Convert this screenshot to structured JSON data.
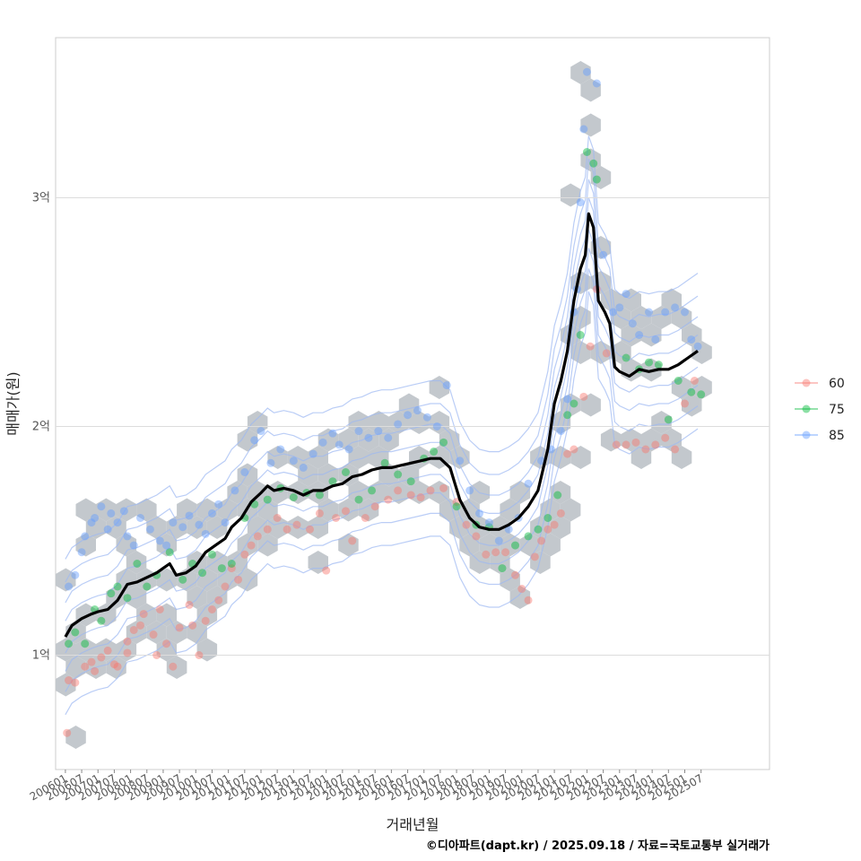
{
  "chart_data": {
    "type": "scatter",
    "title": "",
    "xlabel": "거래년월",
    "ylabel": "매매가(원)",
    "caption": "©디아파트(dapt.kr) / 2025.09.18 / 자료=국토교통부 실거래가",
    "ylim": [
      0.5,
      3.7
    ],
    "yticks": [
      {
        "value": 1,
        "label": "1억"
      },
      {
        "value": 2,
        "label": "2억"
      },
      {
        "value": 3,
        "label": "3억"
      }
    ],
    "xlim": [
      2005.7,
      2027.6
    ],
    "x_tick_labels": [
      "200601",
      "200607",
      "200701",
      "200707",
      "200801",
      "200807",
      "200901",
      "200907",
      "201001",
      "201007",
      "201101",
      "201107",
      "201201",
      "201207",
      "201301",
      "201307",
      "201401",
      "201407",
      "201501",
      "201507",
      "201601",
      "201607",
      "201701",
      "201707",
      "201801",
      "201807",
      "201901",
      "201907",
      "202001",
      "202007",
      "202101",
      "202107",
      "202201",
      "202207",
      "202301",
      "202307",
      "202401",
      "202407",
      "202501",
      "202507"
    ],
    "legend": {
      "position": "right",
      "entries": [
        {
          "name": "60",
          "color": "#F8766D"
        },
        {
          "name": "75",
          "color": "#00BA38"
        },
        {
          "name": "85",
          "color": "#619CFF"
        }
      ]
    },
    "series": [
      {
        "name": "60",
        "color": "#F8766D",
        "points": [
          [
            2006.05,
            0.66
          ],
          [
            2006.1,
            0.89
          ],
          [
            2006.3,
            0.88
          ],
          [
            2006.6,
            0.95
          ],
          [
            2006.8,
            0.97
          ],
          [
            2006.9,
            0.93
          ],
          [
            2007.1,
            0.99
          ],
          [
            2007.3,
            1.02
          ],
          [
            2007.5,
            0.96
          ],
          [
            2007.6,
            0.95
          ],
          [
            2007.9,
            1.01
          ],
          [
            2007.9,
            1.06
          ],
          [
            2008.1,
            1.11
          ],
          [
            2008.3,
            1.13
          ],
          [
            2008.4,
            1.18
          ],
          [
            2008.7,
            1.09
          ],
          [
            2008.8,
            1.0
          ],
          [
            2008.9,
            1.2
          ],
          [
            2009.1,
            1.05
          ],
          [
            2009.3,
            0.95
          ],
          [
            2009.5,
            1.12
          ],
          [
            2009.8,
            1.22
          ],
          [
            2009.9,
            1.13
          ],
          [
            2010.1,
            1.0
          ],
          [
            2010.3,
            1.15
          ],
          [
            2010.5,
            1.2
          ],
          [
            2010.7,
            1.24
          ],
          [
            2010.9,
            1.3
          ],
          [
            2011.1,
            1.38
          ],
          [
            2011.3,
            1.33
          ],
          [
            2011.5,
            1.44
          ],
          [
            2011.7,
            1.48
          ],
          [
            2011.9,
            1.52
          ],
          [
            2012.2,
            1.55
          ],
          [
            2012.5,
            1.6
          ],
          [
            2012.8,
            1.55
          ],
          [
            2013.1,
            1.57
          ],
          [
            2013.5,
            1.55
          ],
          [
            2013.8,
            1.62
          ],
          [
            2014.0,
            1.37
          ],
          [
            2014.3,
            1.6
          ],
          [
            2014.6,
            1.63
          ],
          [
            2014.8,
            1.5
          ],
          [
            2015.2,
            1.6
          ],
          [
            2015.5,
            1.65
          ],
          [
            2015.9,
            1.68
          ],
          [
            2016.2,
            1.72
          ],
          [
            2016.6,
            1.7
          ],
          [
            2016.9,
            1.69
          ],
          [
            2017.2,
            1.72
          ],
          [
            2017.6,
            1.73
          ],
          [
            2018.0,
            1.67
          ],
          [
            2018.3,
            1.57
          ],
          [
            2018.6,
            1.52
          ],
          [
            2018.9,
            1.44
          ],
          [
            2019.2,
            1.45
          ],
          [
            2019.5,
            1.45
          ],
          [
            2019.8,
            1.35
          ],
          [
            2020.0,
            1.29
          ],
          [
            2020.2,
            1.24
          ],
          [
            2020.4,
            1.43
          ],
          [
            2020.6,
            1.5
          ],
          [
            2020.8,
            1.55
          ],
          [
            2021.0,
            1.57
          ],
          [
            2021.2,
            1.62
          ],
          [
            2021.4,
            1.88
          ],
          [
            2021.6,
            1.9
          ],
          [
            2021.9,
            2.13
          ],
          [
            2022.1,
            2.35
          ],
          [
            2022.3,
            2.6
          ],
          [
            2022.6,
            2.32
          ],
          [
            2022.9,
            1.92
          ],
          [
            2023.2,
            1.92
          ],
          [
            2023.5,
            1.93
          ],
          [
            2023.8,
            1.9
          ],
          [
            2024.1,
            1.92
          ],
          [
            2024.4,
            1.95
          ],
          [
            2024.7,
            1.9
          ],
          [
            2025.0,
            2.1
          ],
          [
            2025.3,
            2.2
          ]
        ]
      },
      {
        "name": "75",
        "color": "#00BA38",
        "points": [
          [
            2006.1,
            1.05
          ],
          [
            2006.3,
            1.1
          ],
          [
            2006.6,
            1.05
          ],
          [
            2006.9,
            1.2
          ],
          [
            2007.1,
            1.15
          ],
          [
            2007.4,
            1.27
          ],
          [
            2007.6,
            1.3
          ],
          [
            2007.9,
            1.25
          ],
          [
            2008.2,
            1.4
          ],
          [
            2008.5,
            1.3
          ],
          [
            2008.8,
            1.35
          ],
          [
            2009.2,
            1.45
          ],
          [
            2009.6,
            1.33
          ],
          [
            2009.9,
            1.4
          ],
          [
            2010.2,
            1.36
          ],
          [
            2010.5,
            1.44
          ],
          [
            2010.8,
            1.38
          ],
          [
            2011.1,
            1.4
          ],
          [
            2011.5,
            1.6
          ],
          [
            2011.8,
            1.66
          ],
          [
            2012.2,
            1.68
          ],
          [
            2012.6,
            1.73
          ],
          [
            2013.0,
            1.69
          ],
          [
            2013.4,
            1.71
          ],
          [
            2013.8,
            1.7
          ],
          [
            2014.2,
            1.76
          ],
          [
            2014.6,
            1.8
          ],
          [
            2015.0,
            1.68
          ],
          [
            2015.4,
            1.72
          ],
          [
            2015.8,
            1.84
          ],
          [
            2016.2,
            1.79
          ],
          [
            2016.6,
            1.76
          ],
          [
            2017.0,
            1.86
          ],
          [
            2017.3,
            1.89
          ],
          [
            2017.6,
            1.93
          ],
          [
            2018.0,
            1.65
          ],
          [
            2018.6,
            1.57
          ],
          [
            2019.0,
            1.56
          ],
          [
            2019.4,
            1.38
          ],
          [
            2019.8,
            1.48
          ],
          [
            2020.2,
            1.52
          ],
          [
            2020.5,
            1.55
          ],
          [
            2020.8,
            1.6
          ],
          [
            2021.1,
            1.7
          ],
          [
            2021.4,
            2.05
          ],
          [
            2021.6,
            2.1
          ],
          [
            2021.8,
            2.4
          ],
          [
            2022.0,
            3.2
          ],
          [
            2022.2,
            3.15
          ],
          [
            2022.3,
            3.08
          ],
          [
            2023.2,
            2.3
          ],
          [
            2023.6,
            2.25
          ],
          [
            2023.9,
            2.28
          ],
          [
            2024.2,
            2.27
          ],
          [
            2024.5,
            2.03
          ],
          [
            2024.8,
            2.2
          ],
          [
            2025.2,
            2.15
          ],
          [
            2025.5,
            2.14
          ]
        ]
      },
      {
        "name": "85",
        "color": "#619CFF",
        "points": [
          [
            2006.1,
            1.3
          ],
          [
            2006.3,
            1.35
          ],
          [
            2006.5,
            1.45
          ],
          [
            2006.6,
            1.52
          ],
          [
            2006.8,
            1.58
          ],
          [
            2006.9,
            1.6
          ],
          [
            2007.1,
            1.65
          ],
          [
            2007.3,
            1.55
          ],
          [
            2007.4,
            1.62
          ],
          [
            2007.6,
            1.58
          ],
          [
            2007.8,
            1.63
          ],
          [
            2007.9,
            1.52
          ],
          [
            2008.1,
            1.48
          ],
          [
            2008.3,
            1.6
          ],
          [
            2008.6,
            1.55
          ],
          [
            2008.9,
            1.5
          ],
          [
            2009.1,
            1.48
          ],
          [
            2009.3,
            1.58
          ],
          [
            2009.6,
            1.56
          ],
          [
            2009.8,
            1.61
          ],
          [
            2010.1,
            1.57
          ],
          [
            2010.3,
            1.53
          ],
          [
            2010.5,
            1.62
          ],
          [
            2010.7,
            1.66
          ],
          [
            2010.9,
            1.58
          ],
          [
            2011.2,
            1.72
          ],
          [
            2011.5,
            1.8
          ],
          [
            2011.8,
            1.94
          ],
          [
            2012.0,
            1.98
          ],
          [
            2012.3,
            1.84
          ],
          [
            2012.6,
            1.9
          ],
          [
            2013.0,
            1.85
          ],
          [
            2013.3,
            1.82
          ],
          [
            2013.6,
            1.88
          ],
          [
            2013.9,
            1.93
          ],
          [
            2014.2,
            1.97
          ],
          [
            2014.4,
            1.92
          ],
          [
            2014.7,
            1.9
          ],
          [
            2015.0,
            1.98
          ],
          [
            2015.3,
            1.95
          ],
          [
            2015.6,
            1.98
          ],
          [
            2015.9,
            1.95
          ],
          [
            2016.2,
            2.01
          ],
          [
            2016.5,
            2.05
          ],
          [
            2016.8,
            2.07
          ],
          [
            2017.1,
            2.04
          ],
          [
            2017.4,
            2.0
          ],
          [
            2017.7,
            2.18
          ],
          [
            2018.1,
            1.85
          ],
          [
            2018.4,
            1.72
          ],
          [
            2018.7,
            1.62
          ],
          [
            2019.0,
            1.58
          ],
          [
            2019.3,
            1.5
          ],
          [
            2019.6,
            1.55
          ],
          [
            2019.9,
            1.6
          ],
          [
            2020.2,
            1.75
          ],
          [
            2020.6,
            1.85
          ],
          [
            2020.9,
            1.9
          ],
          [
            2021.2,
            1.98
          ],
          [
            2021.4,
            2.12
          ],
          [
            2021.6,
            2.5
          ],
          [
            2021.7,
            2.6
          ],
          [
            2021.8,
            2.98
          ],
          [
            2021.9,
            3.3
          ],
          [
            2022.0,
            3.55
          ],
          [
            2022.3,
            3.5
          ],
          [
            2022.5,
            2.75
          ],
          [
            2022.8,
            2.5
          ],
          [
            2023.0,
            2.52
          ],
          [
            2023.2,
            2.58
          ],
          [
            2023.4,
            2.45
          ],
          [
            2023.6,
            2.4
          ],
          [
            2023.9,
            2.5
          ],
          [
            2024.1,
            2.38
          ],
          [
            2024.4,
            2.5
          ],
          [
            2024.7,
            2.52
          ],
          [
            2025.0,
            2.5
          ],
          [
            2025.2,
            2.38
          ],
          [
            2025.4,
            2.35
          ]
        ]
      },
      {
        "name": "median",
        "color": "#000000",
        "line": [
          [
            2006.0,
            1.08
          ],
          [
            2006.2,
            1.13
          ],
          [
            2006.5,
            1.16
          ],
          [
            2006.8,
            1.18
          ],
          [
            2007.0,
            1.19
          ],
          [
            2007.3,
            1.2
          ],
          [
            2007.6,
            1.24
          ],
          [
            2007.9,
            1.31
          ],
          [
            2008.2,
            1.32
          ],
          [
            2008.5,
            1.34
          ],
          [
            2008.8,
            1.36
          ],
          [
            2009.0,
            1.38
          ],
          [
            2009.2,
            1.4
          ],
          [
            2009.4,
            1.35
          ],
          [
            2009.7,
            1.36
          ],
          [
            2010.0,
            1.39
          ],
          [
            2010.3,
            1.45
          ],
          [
            2010.6,
            1.48
          ],
          [
            2010.9,
            1.51
          ],
          [
            2011.1,
            1.56
          ],
          [
            2011.4,
            1.6
          ],
          [
            2011.7,
            1.67
          ],
          [
            2012.0,
            1.71
          ],
          [
            2012.2,
            1.74
          ],
          [
            2012.4,
            1.72
          ],
          [
            2012.7,
            1.73
          ],
          [
            2013.0,
            1.72
          ],
          [
            2013.3,
            1.7
          ],
          [
            2013.6,
            1.72
          ],
          [
            2013.9,
            1.72
          ],
          [
            2014.2,
            1.74
          ],
          [
            2014.5,
            1.75
          ],
          [
            2014.8,
            1.78
          ],
          [
            2015.1,
            1.79
          ],
          [
            2015.4,
            1.81
          ],
          [
            2015.7,
            1.82
          ],
          [
            2016.0,
            1.82
          ],
          [
            2016.3,
            1.83
          ],
          [
            2016.6,
            1.84
          ],
          [
            2016.9,
            1.85
          ],
          [
            2017.2,
            1.86
          ],
          [
            2017.5,
            1.86
          ],
          [
            2017.8,
            1.82
          ],
          [
            2018.1,
            1.68
          ],
          [
            2018.4,
            1.6
          ],
          [
            2018.7,
            1.56
          ],
          [
            2019.0,
            1.55
          ],
          [
            2019.3,
            1.55
          ],
          [
            2019.6,
            1.57
          ],
          [
            2019.9,
            1.6
          ],
          [
            2020.2,
            1.65
          ],
          [
            2020.5,
            1.72
          ],
          [
            2020.8,
            1.9
          ],
          [
            2021.0,
            2.1
          ],
          [
            2021.2,
            2.2
          ],
          [
            2021.4,
            2.33
          ],
          [
            2021.6,
            2.55
          ],
          [
            2021.8,
            2.69
          ],
          [
            2021.95,
            2.75
          ],
          [
            2022.05,
            2.93
          ],
          [
            2022.2,
            2.87
          ],
          [
            2022.35,
            2.55
          ],
          [
            2022.55,
            2.5
          ],
          [
            2022.7,
            2.45
          ],
          [
            2022.85,
            2.26
          ],
          [
            2023.0,
            2.24
          ],
          [
            2023.3,
            2.22
          ],
          [
            2023.6,
            2.25
          ],
          [
            2023.9,
            2.24
          ],
          [
            2024.2,
            2.25
          ],
          [
            2024.5,
            2.25
          ],
          [
            2024.8,
            2.27
          ],
          [
            2025.1,
            2.3
          ],
          [
            2025.4,
            2.33
          ]
        ]
      }
    ]
  }
}
